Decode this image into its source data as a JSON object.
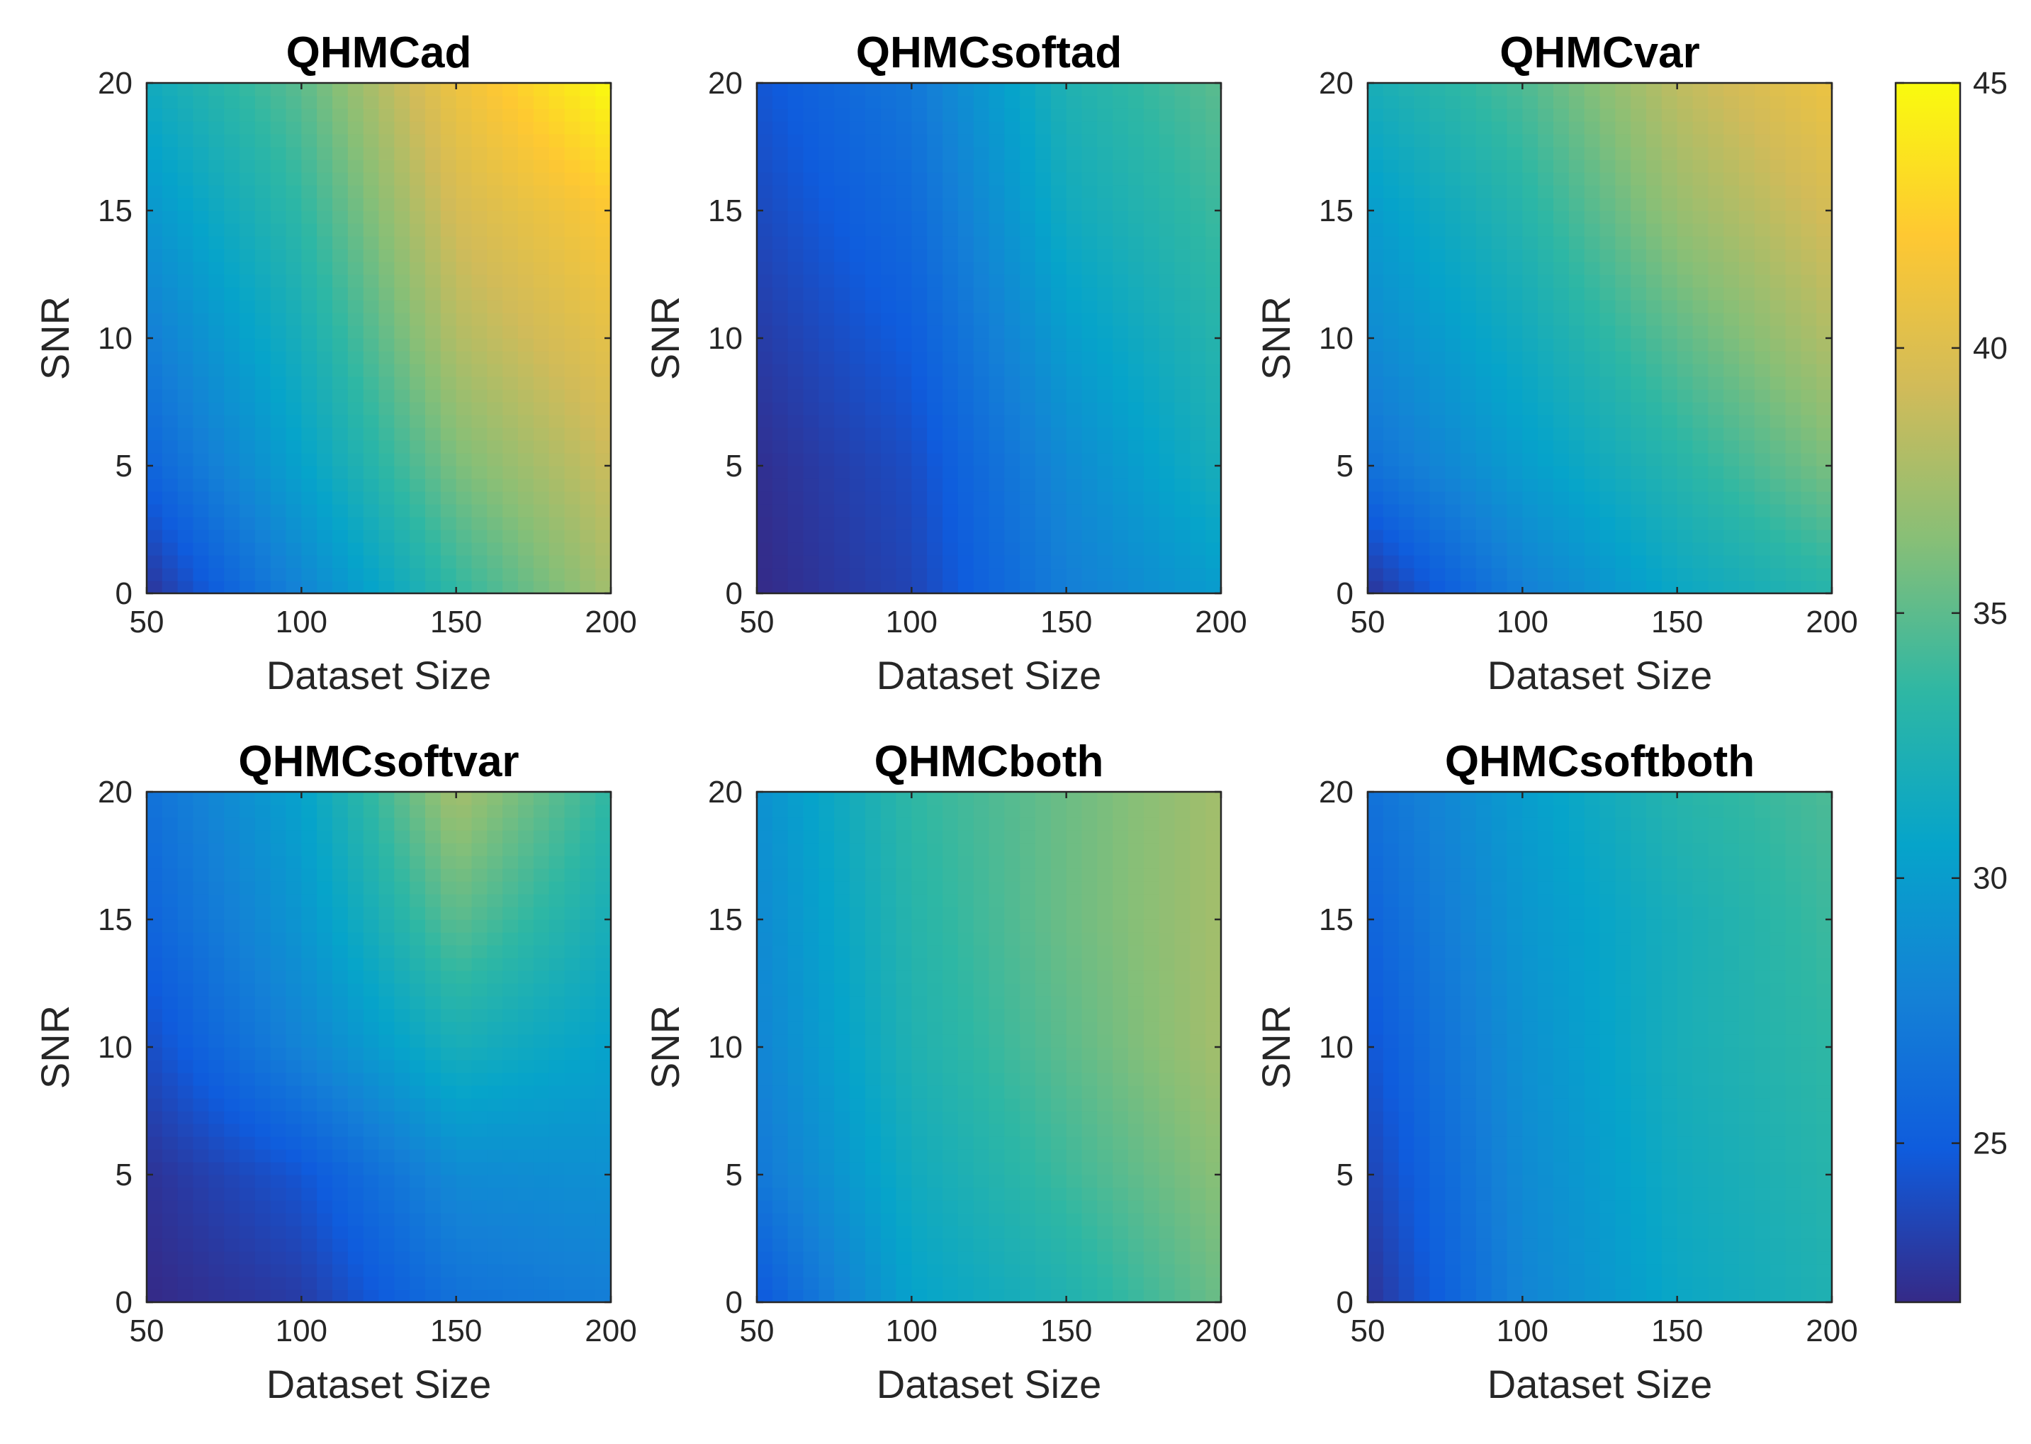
{
  "colors": {
    "parula": [
      "#352a87",
      "#0f5cdd",
      "#1481d6",
      "#06a4ca",
      "#2eb7a4",
      "#87bf77",
      "#d1bb59",
      "#fec832",
      "#f9fb0e"
    ],
    "axis": "#262626"
  },
  "colorbar": {
    "min": 22,
    "max": 45,
    "ticks": [
      "25",
      "30",
      "35",
      "40",
      "45"
    ],
    "tick_values": [
      25,
      30,
      35,
      40,
      45
    ]
  },
  "chart_data": [
    {
      "type": "heatmap",
      "title": "QHMCad",
      "xlabel": "Dataset Size",
      "ylabel": "SNR",
      "x": [
        50,
        100,
        150,
        200
      ],
      "y": [
        0,
        5,
        10,
        15,
        20
      ],
      "xlim": [
        50,
        200
      ],
      "ylim": [
        0,
        20
      ],
      "x_ticks": [
        "50",
        "100",
        "150",
        "200"
      ],
      "y_ticks": [
        "0",
        "5",
        "10",
        "15",
        "20"
      ],
      "z": [
        [
          22.5,
          28.0,
          33.5,
          37.5
        ],
        [
          25.5,
          30.5,
          36.0,
          39.0
        ],
        [
          27.5,
          32.0,
          38.0,
          40.5
        ],
        [
          29.5,
          33.5,
          39.5,
          42.0
        ],
        [
          31.5,
          35.0,
          41.0,
          45.0
        ]
      ]
    },
    {
      "type": "heatmap",
      "title": "QHMCsoftad",
      "xlabel": "Dataset Size",
      "ylabel": "SNR",
      "x": [
        50,
        100,
        150,
        200
      ],
      "y": [
        0,
        5,
        10,
        15,
        20
      ],
      "xlim": [
        50,
        200
      ],
      "ylim": [
        0,
        20
      ],
      "x_ticks": [
        "50",
        "100",
        "150",
        "200"
      ],
      "y_ticks": [
        "0",
        "5",
        "10",
        "15",
        "20"
      ],
      "z": [
        [
          22.0,
          23.5,
          27.5,
          30.0
        ],
        [
          22.3,
          24.0,
          28.5,
          32.0
        ],
        [
          23.0,
          25.0,
          30.0,
          33.0
        ],
        [
          23.8,
          26.0,
          31.5,
          34.0
        ],
        [
          24.5,
          27.0,
          32.5,
          35.0
        ]
      ]
    },
    {
      "type": "heatmap",
      "title": "QHMCvar",
      "xlabel": "Dataset Size",
      "ylabel": "SNR",
      "x": [
        50,
        100,
        150,
        200
      ],
      "y": [
        0,
        5,
        10,
        15,
        20
      ],
      "xlim": [
        50,
        200
      ],
      "ylim": [
        0,
        20
      ],
      "x_ticks": [
        "50",
        "100",
        "150",
        "200"
      ],
      "y_ticks": [
        "0",
        "5",
        "10",
        "15",
        "20"
      ],
      "z": [
        [
          22.5,
          27.5,
          31.0,
          33.0
        ],
        [
          26.5,
          30.0,
          33.0,
          36.0
        ],
        [
          28.5,
          31.5,
          35.0,
          38.0
        ],
        [
          30.0,
          33.0,
          37.0,
          39.5
        ],
        [
          32.0,
          34.5,
          38.5,
          41.0
        ]
      ]
    },
    {
      "type": "heatmap",
      "title": "QHMCsoftvar",
      "xlabel": "Dataset Size",
      "ylabel": "SNR",
      "x": [
        50,
        100,
        150,
        200
      ],
      "y": [
        0,
        5,
        10,
        15,
        20
      ],
      "xlim": [
        50,
        200
      ],
      "ylim": [
        0,
        20
      ],
      "x_ticks": [
        "50",
        "100",
        "150",
        "200"
      ],
      "y_ticks": [
        "0",
        "5",
        "10",
        "15",
        "20"
      ],
      "z": [
        [
          22.0,
          23.0,
          26.5,
          27.5
        ],
        [
          22.5,
          24.5,
          28.5,
          29.0
        ],
        [
          24.0,
          28.0,
          32.0,
          30.5
        ],
        [
          25.5,
          29.5,
          35.0,
          32.0
        ],
        [
          26.5,
          30.5,
          37.5,
          33.5
        ]
      ]
    },
    {
      "type": "heatmap",
      "title": "QHMCboth",
      "xlabel": "Dataset Size",
      "ylabel": "SNR",
      "x": [
        50,
        100,
        150,
        200
      ],
      "y": [
        0,
        5,
        10,
        15,
        20
      ],
      "xlim": [
        50,
        200
      ],
      "ylim": [
        0,
        20
      ],
      "x_ticks": [
        "50",
        "100",
        "150",
        "200"
      ],
      "y_ticks": [
        "0",
        "5",
        "10",
        "15",
        "20"
      ],
      "z": [
        [
          24.5,
          30.5,
          32.5,
          35.5
        ],
        [
          27.0,
          31.5,
          34.0,
          36.5
        ],
        [
          28.0,
          32.5,
          35.0,
          37.5
        ],
        [
          28.5,
          33.0,
          35.5,
          37.5
        ],
        [
          29.0,
          33.5,
          35.5,
          37.5
        ]
      ]
    },
    {
      "type": "heatmap",
      "title": "QHMCsoftboth",
      "xlabel": "Dataset Size",
      "ylabel": "SNR",
      "x": [
        50,
        100,
        150,
        200
      ],
      "y": [
        0,
        5,
        10,
        15,
        20
      ],
      "xlim": [
        50,
        200
      ],
      "ylim": [
        0,
        20
      ],
      "x_ticks": [
        "50",
        "100",
        "150",
        "200"
      ],
      "y_ticks": [
        "0",
        "5",
        "10",
        "15",
        "20"
      ],
      "z": [
        [
          22.5,
          28.0,
          31.0,
          32.5
        ],
        [
          23.5,
          28.5,
          31.5,
          33.0
        ],
        [
          24.5,
          29.0,
          32.0,
          33.5
        ],
        [
          25.5,
          29.5,
          32.0,
          34.0
        ],
        [
          26.5,
          30.0,
          33.0,
          34.5
        ]
      ]
    }
  ]
}
